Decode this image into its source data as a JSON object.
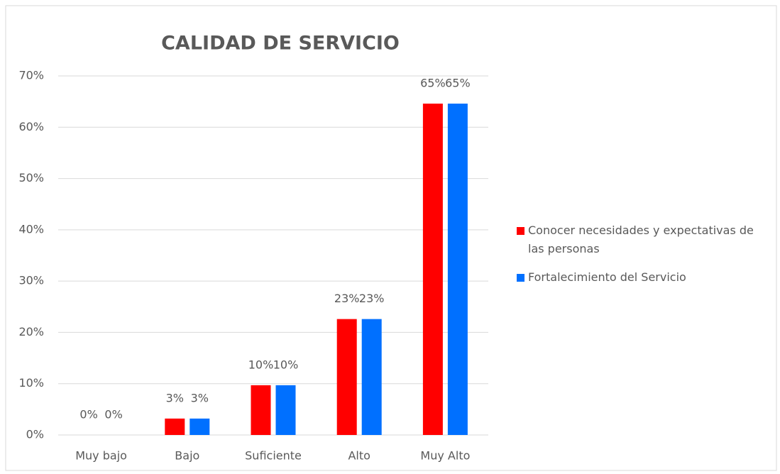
{
  "chart_data": {
    "type": "bar",
    "title": "CALIDAD DE SERVICIO",
    "categories": [
      "Muy bajo",
      "Bajo",
      "Suficiente",
      "Alto",
      "Muy Alto"
    ],
    "series": [
      {
        "name": "Conocer necesidades y expectativas de las personas",
        "color": "#ff0000",
        "values": [
          0,
          3.2,
          9.7,
          22.6,
          64.6
        ],
        "value_labels": [
          "0%",
          "3%",
          "10%",
          "23%",
          "65%"
        ]
      },
      {
        "name": "Fortalecimiento del Servicio",
        "color": "#0070ff",
        "values": [
          0,
          3.2,
          9.7,
          22.6,
          64.6
        ],
        "value_labels": [
          "0%",
          "3%",
          "10%",
          "23%",
          "65%"
        ]
      }
    ],
    "ylim": [
      0,
      70
    ],
    "yticks": [
      {
        "value": 0,
        "label": "0%"
      },
      {
        "value": 10,
        "label": "10%"
      },
      {
        "value": 20,
        "label": "20%"
      },
      {
        "value": 30,
        "label": "30%"
      },
      {
        "value": 40,
        "label": "40%"
      },
      {
        "value": 50,
        "label": "50%"
      },
      {
        "value": 60,
        "label": "60%"
      },
      {
        "value": 70,
        "label": "70%"
      }
    ],
    "grid": true,
    "legend": "right"
  }
}
